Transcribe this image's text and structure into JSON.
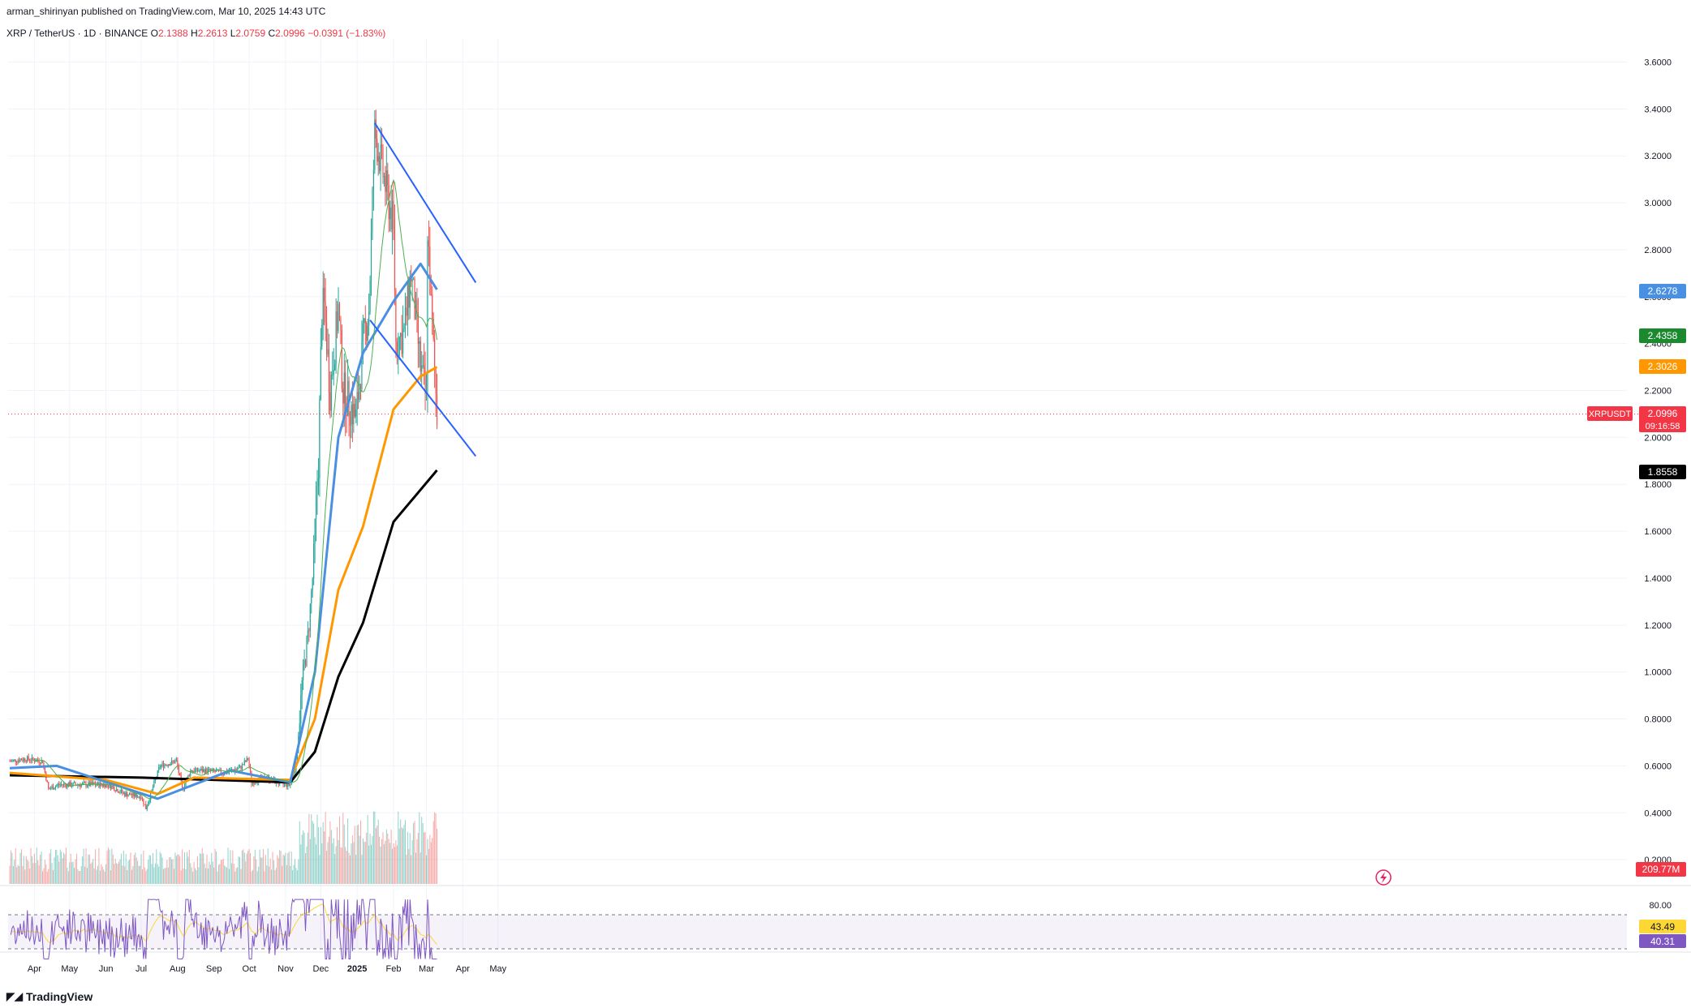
{
  "header": {
    "published_line": "arman_shirinyan published on TradingView.com, Mar 10, 2025 14:43 UTC"
  },
  "symbol_bar": {
    "symbol": "XRP / TetherUS · 1D · BINANCE",
    "open_label": "O",
    "open": "2.1388",
    "high_label": "H",
    "high": "2.2613",
    "low_label": "L",
    "low": "2.0759",
    "close_label": "C",
    "close": "2.0996",
    "change": "−0.0391 (−1.83%)"
  },
  "branding": {
    "logo_text": "TradingView"
  },
  "price_tags": {
    "ma_blue": "2.6278",
    "ma_green": "2.4358",
    "ma_orange": "2.3026",
    "symbol_tag": "XRPUSDT",
    "last_price": "2.0996",
    "countdown": "09:16:58",
    "ma_black": "1.8558",
    "volume": "209.77M",
    "rsi_ma": "43.49",
    "rsi": "40.31"
  },
  "colors": {
    "up": "#26a69a",
    "down": "#ef5350",
    "ma_blue": "#4a90e2",
    "ma_orange": "#ff9800",
    "ma_black": "#000000",
    "ma_green": "#4caf50",
    "channel": "#2962ff",
    "rsi": "#7e57c2",
    "rsi_ma": "#fdd835"
  },
  "chart_data": {
    "type": "candlestick",
    "title": "XRP / TetherUS · 1D · BINANCE",
    "x_ticks": [
      "Apr",
      "May",
      "Jun",
      "Jul",
      "Aug",
      "Sep",
      "Oct",
      "Nov",
      "Dec",
      "2025",
      "Feb",
      "Mar",
      "Apr",
      "May"
    ],
    "y_ticks": [
      "3.6000",
      "3.4000",
      "3.2000",
      "3.0000",
      "2.8000",
      "2.6000",
      "2.4000",
      "2.2000",
      "2.0000",
      "1.8000",
      "1.6000",
      "1.4000",
      "1.2000",
      "1.0000",
      "0.8000",
      "0.6000",
      "0.4000",
      "0.2000"
    ],
    "ylim": [
      0.16,
      3.72
    ],
    "rsi_ticks": [
      "80.00"
    ],
    "rsi_bands": [
      70,
      30
    ],
    "price_path": [
      [
        "2024-03-11",
        0.62
      ],
      [
        "2024-03-25",
        0.63
      ],
      [
        "2024-04-08",
        0.62
      ],
      [
        "2024-04-13",
        0.5
      ],
      [
        "2024-04-22",
        0.52
      ],
      [
        "2024-05-06",
        0.52
      ],
      [
        "2024-05-20",
        0.52
      ],
      [
        "2024-06-03",
        0.52
      ],
      [
        "2024-06-17",
        0.48
      ],
      [
        "2024-07-01",
        0.47
      ],
      [
        "2024-07-05",
        0.42
      ],
      [
        "2024-07-17",
        0.6
      ],
      [
        "2024-07-31",
        0.62
      ],
      [
        "2024-08-05",
        0.5
      ],
      [
        "2024-08-12",
        0.58
      ],
      [
        "2024-08-26",
        0.58
      ],
      [
        "2024-09-09",
        0.57
      ],
      [
        "2024-09-23",
        0.59
      ],
      [
        "2024-09-30",
        0.63
      ],
      [
        "2024-10-03",
        0.53
      ],
      [
        "2024-10-15",
        0.55
      ],
      [
        "2024-10-29",
        0.52
      ],
      [
        "2024-11-05",
        0.52
      ],
      [
        "2024-11-10",
        0.6
      ],
      [
        "2024-11-15",
        0.95
      ],
      [
        "2024-11-20",
        1.15
      ],
      [
        "2024-11-24",
        1.4
      ],
      [
        "2024-11-29",
        1.9
      ],
      [
        "2024-12-02",
        2.55
      ],
      [
        "2024-12-04",
        2.55
      ],
      [
        "2024-12-09",
        2.2
      ],
      [
        "2024-12-16",
        2.55
      ],
      [
        "2024-12-20",
        2.2
      ],
      [
        "2024-12-31",
        2.08
      ],
      [
        "2025-01-06",
        2.4
      ],
      [
        "2025-01-11",
        2.55
      ],
      [
        "2025-01-16",
        3.3
      ],
      [
        "2025-01-24",
        3.1
      ],
      [
        "2025-02-01",
        2.9
      ],
      [
        "2025-02-03",
        2.4
      ],
      [
        "2025-02-10",
        2.45
      ],
      [
        "2025-02-16",
        2.7
      ],
      [
        "2025-02-24",
        2.3
      ],
      [
        "2025-03-01",
        2.15
      ],
      [
        "2025-03-02",
        2.9
      ],
      [
        "2025-03-05",
        2.55
      ],
      [
        "2025-03-10",
        2.1
      ]
    ],
    "series": [
      {
        "name": "",
        "color": "#000000",
        "points": [
          [
            "2024-03-11",
            0.56
          ],
          [
            "2024-07-01",
            0.55
          ],
          [
            "2024-11-05",
            0.53
          ],
          [
            "2024-11-26",
            0.66
          ],
          [
            "2024-12-16",
            0.98
          ],
          [
            "2025-01-06",
            1.21
          ],
          [
            "2025-02-01",
            1.64
          ],
          [
            "2025-03-10",
            1.86
          ]
        ]
      },
      {
        "name": "",
        "color": "#ff9800",
        "points": [
          [
            "2024-03-11",
            0.57
          ],
          [
            "2024-06-01",
            0.54
          ],
          [
            "2024-07-15",
            0.48
          ],
          [
            "2024-08-15",
            0.55
          ],
          [
            "2024-11-05",
            0.54
          ],
          [
            "2024-11-26",
            0.8
          ],
          [
            "2024-12-16",
            1.35
          ],
          [
            "2025-01-06",
            1.62
          ],
          [
            "2025-02-01",
            2.12
          ],
          [
            "2025-02-24",
            2.26
          ],
          [
            "2025-03-10",
            2.3
          ]
        ]
      },
      {
        "name": "",
        "color": "#4a90e2",
        "points": [
          [
            "2024-03-11",
            0.59
          ],
          [
            "2024-04-20",
            0.6
          ],
          [
            "2024-07-15",
            0.46
          ],
          [
            "2024-09-15",
            0.58
          ],
          [
            "2024-11-05",
            0.53
          ],
          [
            "2024-11-26",
            1.0
          ],
          [
            "2024-12-16",
            2.0
          ],
          [
            "2025-01-06",
            2.36
          ],
          [
            "2025-02-01",
            2.58
          ],
          [
            "2025-02-24",
            2.74
          ],
          [
            "2025-03-10",
            2.63
          ]
        ]
      }
    ],
    "channel_lines": [
      {
        "from": [
          "2025-01-16",
          3.34
        ],
        "to": [
          "2025-04-12",
          2.66
        ]
      },
      {
        "from": [
          "2025-01-12",
          2.5
        ],
        "to": [
          "2025-04-12",
          1.92
        ]
      }
    ],
    "last_price": 2.0996
  }
}
